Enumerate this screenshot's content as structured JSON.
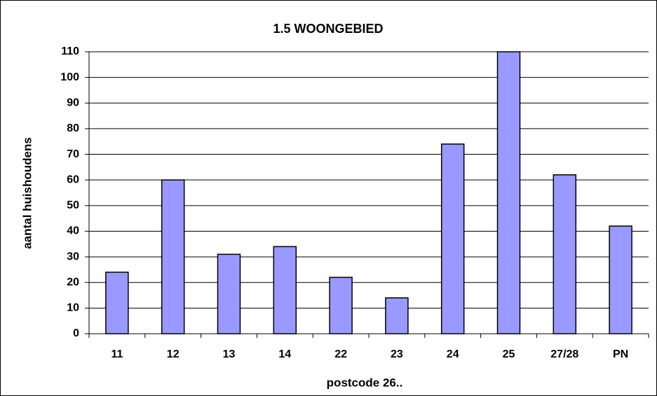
{
  "chart_data": {
    "type": "bar",
    "title": "1.5 WOONGEBIED",
    "x_label": "postcode 26..",
    "y_label": "aantal huishoudens",
    "categories": [
      "11",
      "12",
      "13",
      "14",
      "22",
      "23",
      "24",
      "25",
      "27/28",
      "PN"
    ],
    "values": [
      24,
      60,
      31,
      34,
      22,
      14,
      74,
      110,
      62,
      42
    ],
    "color": "#9999ff",
    "ylim": [
      0,
      110
    ],
    "yticks": [
      0,
      10,
      20,
      30,
      40,
      50,
      60,
      70,
      80,
      90,
      100,
      110
    ],
    "grid": true
  }
}
